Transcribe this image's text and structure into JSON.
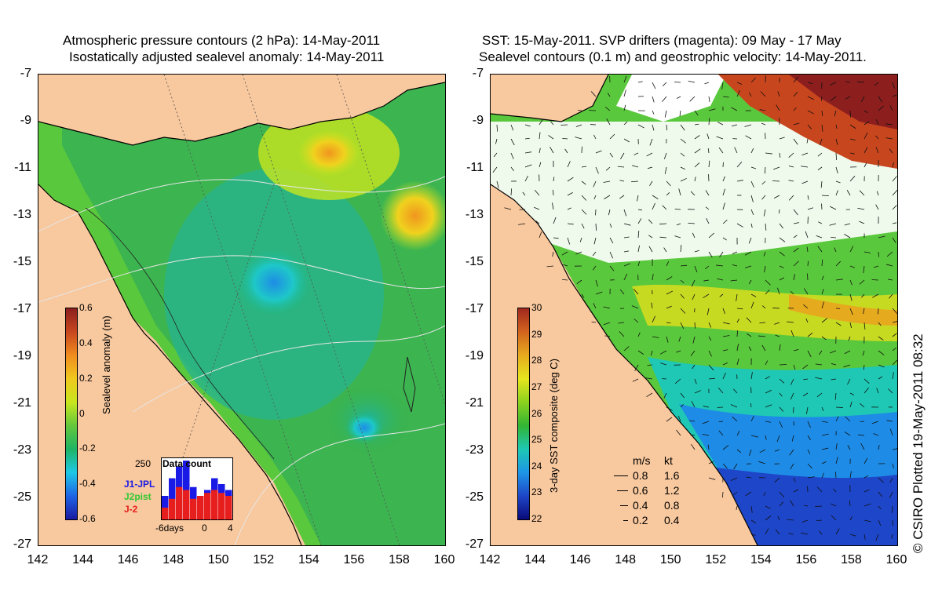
{
  "left_panel": {
    "title_line1": "Atmospheric pressure contours (2 hPa): 14-May-2011",
    "title_line2": "Isostatically adjusted sealevel anomaly: 14-May-2011",
    "colorbar": {
      "label": "Sealevel anomaly (m)",
      "ticks": [
        "0.6",
        "0.4",
        "0.2",
        "0",
        "-0.2",
        "-0.4",
        "-0.6"
      ],
      "colors": [
        "#1a1aa0",
        "#1e64e6",
        "#1ec8e6",
        "#1eb464",
        "#64c83c",
        "#c8e61e",
        "#f0c81e",
        "#f08c1e",
        "#c8461e",
        "#8c1e1e"
      ]
    },
    "inset": {
      "title": "Data count",
      "ymax_label": "250",
      "series": [
        {
          "name": "J1-JPL",
          "color": "#1a1ae6"
        },
        {
          "name": "J2pist",
          "color": "#32c832"
        },
        {
          "name": "J-2",
          "color": "#e61e1e"
        }
      ],
      "xlabels": [
        "-6days",
        "0",
        "4"
      ],
      "bars_j1": [
        0.4,
        0.7,
        0.9,
        1.0,
        0.55,
        0.3,
        0.5,
        0.7,
        0.6,
        0.5
      ],
      "bars_j2": [
        0.2,
        0.35,
        0.55,
        0.5,
        0.35,
        0.4,
        0.45,
        0.5,
        0.45,
        0.4
      ]
    }
  },
  "right_panel": {
    "title_line1": "SST: 15-May-2011. SVP drifters (magenta): 09 May - 17 May",
    "title_line2": "Sealevel contours (0.1 m) and geostrophic velocity: 14-May-2011.",
    "colorbar": {
      "label": "3-day SST composite (deg C)",
      "ticks": [
        "30",
        "29",
        "28",
        "27",
        "26",
        "25",
        "24",
        "23",
        "22"
      ],
      "colors": [
        "#0a0a78",
        "#1e46c8",
        "#1e96e6",
        "#1ec8b4",
        "#32b432",
        "#8cd21e",
        "#e6e61e",
        "#e6aa1e",
        "#d2641e",
        "#a0281e"
      ]
    },
    "velocity_legend": {
      "header_ms": "m/s",
      "header_kt": "kt",
      "rows": [
        {
          "ms": "0.8",
          "kt": "1.6"
        },
        {
          "ms": "0.6",
          "kt": "1.2"
        },
        {
          "ms": "0.4",
          "kt": "0.8"
        },
        {
          "ms": "0.2",
          "kt": "0.4"
        }
      ]
    },
    "credit": "© CSIRO Plotted 19-May-2011 08:32"
  },
  "axes": {
    "y_ticks": [
      "-7",
      "-9",
      "-11",
      "-13",
      "-15",
      "-17",
      "-19",
      "-21",
      "-23",
      "-25",
      "-27"
    ],
    "x_ticks": [
      "142",
      "144",
      "146",
      "148",
      "150",
      "152",
      "154",
      "156",
      "158",
      "160"
    ]
  },
  "colors": {
    "land": "#f8c89e",
    "sea_green": "#3cb43c",
    "cloud_white": "#ffffff"
  }
}
